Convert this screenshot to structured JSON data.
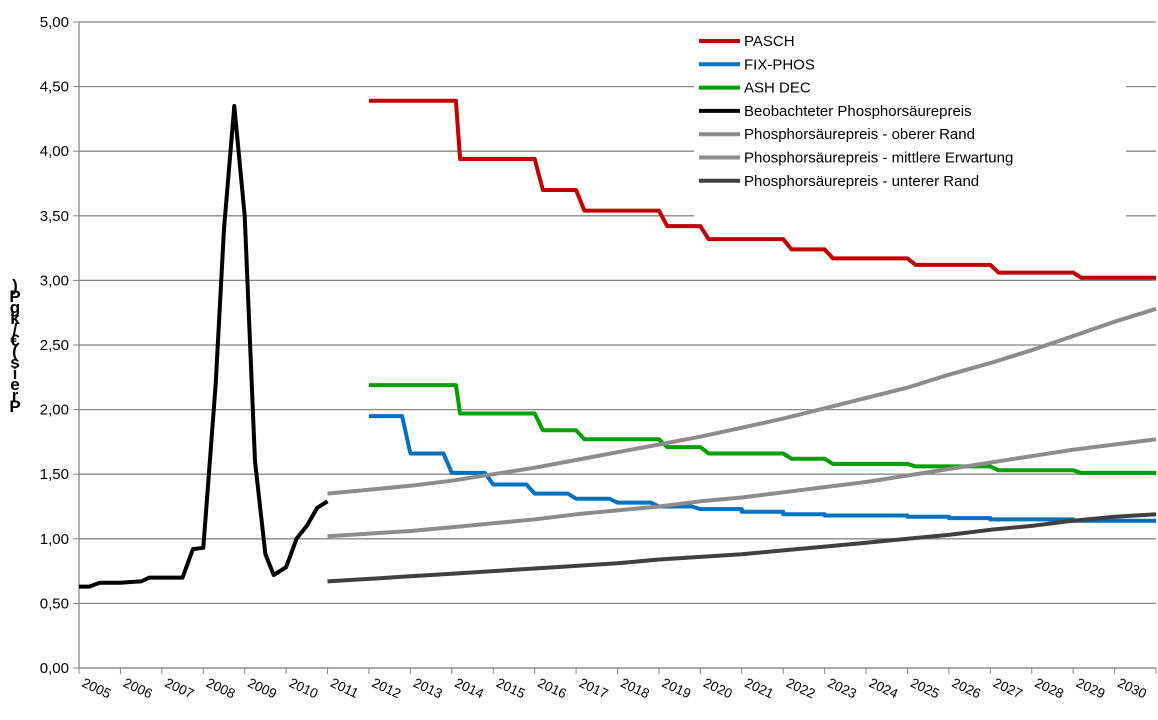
{
  "chart_data": {
    "type": "line",
    "title": "",
    "xlabel": "",
    "ylabel": "Preis (€/kg P)",
    "ylim": [
      0,
      5
    ],
    "yticks": [
      "0,00",
      "0,50",
      "1,00",
      "1,50",
      "2,00",
      "2,50",
      "3,00",
      "3,50",
      "4,00",
      "4,50",
      "5,00"
    ],
    "xlim": [
      2005,
      2031
    ],
    "xticks": [
      "2005",
      "2006",
      "2007",
      "2008",
      "2009",
      "2010",
      "2011",
      "2012",
      "2013",
      "2014",
      "2015",
      "2016",
      "2017",
      "2018",
      "2019",
      "2020",
      "2021",
      "2022",
      "2023",
      "2024",
      "2025",
      "2026",
      "2027",
      "2028",
      "2029",
      "2030"
    ],
    "grid": "horizontal",
    "legend_position": "top-right",
    "series": [
      {
        "name": "PASCH",
        "color": "#c00000",
        "points": [
          [
            2012,
            4.39
          ],
          [
            2014.1,
            4.39
          ],
          [
            2014.2,
            3.94
          ],
          [
            2016,
            3.94
          ],
          [
            2016.2,
            3.7
          ],
          [
            2017,
            3.7
          ],
          [
            2017.2,
            3.54
          ],
          [
            2019,
            3.54
          ],
          [
            2019.2,
            3.42
          ],
          [
            2020,
            3.42
          ],
          [
            2020.2,
            3.32
          ],
          [
            2022,
            3.32
          ],
          [
            2022.2,
            3.24
          ],
          [
            2023,
            3.24
          ],
          [
            2023.2,
            3.17
          ],
          [
            2025,
            3.17
          ],
          [
            2025.2,
            3.12
          ],
          [
            2027,
            3.12
          ],
          [
            2027.2,
            3.06
          ],
          [
            2029,
            3.06
          ],
          [
            2029.2,
            3.02
          ],
          [
            2031,
            3.02
          ]
        ]
      },
      {
        "name": "FIX-PHOS",
        "color": "#0070c0",
        "points": [
          [
            2012,
            1.95
          ],
          [
            2012.8,
            1.95
          ],
          [
            2013,
            1.66
          ],
          [
            2013.8,
            1.66
          ],
          [
            2014,
            1.51
          ],
          [
            2014.8,
            1.51
          ],
          [
            2015,
            1.42
          ],
          [
            2015.8,
            1.42
          ],
          [
            2016,
            1.35
          ],
          [
            2016.8,
            1.35
          ],
          [
            2017,
            1.31
          ],
          [
            2017.8,
            1.31
          ],
          [
            2018,
            1.28
          ],
          [
            2018.8,
            1.28
          ],
          [
            2019,
            1.25
          ],
          [
            2019.8,
            1.25
          ],
          [
            2020,
            1.23
          ],
          [
            2021,
            1.23
          ],
          [
            2021,
            1.21
          ],
          [
            2022,
            1.21
          ],
          [
            2022,
            1.19
          ],
          [
            2023,
            1.19
          ],
          [
            2023,
            1.18
          ],
          [
            2025,
            1.18
          ],
          [
            2025,
            1.17
          ],
          [
            2026,
            1.17
          ],
          [
            2026,
            1.16
          ],
          [
            2027,
            1.16
          ],
          [
            2027,
            1.15
          ],
          [
            2029,
            1.15
          ],
          [
            2029,
            1.14
          ],
          [
            2031,
            1.14
          ]
        ]
      },
      {
        "name": "ASH DEC",
        "color": "#00a000",
        "points": [
          [
            2012,
            2.19
          ],
          [
            2014.1,
            2.19
          ],
          [
            2014.2,
            1.97
          ],
          [
            2016,
            1.97
          ],
          [
            2016.2,
            1.84
          ],
          [
            2017,
            1.84
          ],
          [
            2017.2,
            1.77
          ],
          [
            2019,
            1.77
          ],
          [
            2019.2,
            1.71
          ],
          [
            2020,
            1.71
          ],
          [
            2020.2,
            1.66
          ],
          [
            2022,
            1.66
          ],
          [
            2022.2,
            1.62
          ],
          [
            2023,
            1.62
          ],
          [
            2023.2,
            1.58
          ],
          [
            2025,
            1.58
          ],
          [
            2025.2,
            1.56
          ],
          [
            2027,
            1.56
          ],
          [
            2027.2,
            1.53
          ],
          [
            2029,
            1.53
          ],
          [
            2029.2,
            1.51
          ],
          [
            2031,
            1.51
          ]
        ]
      },
      {
        "name": "Beobachteter Phosphorsäurepreis",
        "color": "#000000",
        "points": [
          [
            2005,
            0.63
          ],
          [
            2005.25,
            0.63
          ],
          [
            2005.5,
            0.66
          ],
          [
            2006,
            0.66
          ],
          [
            2006.5,
            0.67
          ],
          [
            2006.7,
            0.7
          ],
          [
            2007.5,
            0.7
          ],
          [
            2007.75,
            0.92
          ],
          [
            2008,
            0.93
          ],
          [
            2008.3,
            2.2
          ],
          [
            2008.5,
            3.4
          ],
          [
            2008.75,
            4.35
          ],
          [
            2009,
            3.5
          ],
          [
            2009.25,
            1.6
          ],
          [
            2009.5,
            0.88
          ],
          [
            2009.7,
            0.72
          ],
          [
            2010,
            0.78
          ],
          [
            2010.25,
            1.0
          ],
          [
            2010.5,
            1.1
          ],
          [
            2010.75,
            1.24
          ],
          [
            2011,
            1.29
          ]
        ]
      },
      {
        "name": "Phosphorsäurepreis - oberer Rand",
        "color": "#8c8c8c",
        "points": [
          [
            2011,
            1.35
          ],
          [
            2012,
            1.38
          ],
          [
            2013,
            1.41
          ],
          [
            2014,
            1.45
          ],
          [
            2015,
            1.5
          ],
          [
            2016,
            1.55
          ],
          [
            2017,
            1.61
          ],
          [
            2018,
            1.67
          ],
          [
            2019,
            1.73
          ],
          [
            2020,
            1.79
          ],
          [
            2021,
            1.86
          ],
          [
            2022,
            1.93
          ],
          [
            2023,
            2.01
          ],
          [
            2024,
            2.09
          ],
          [
            2025,
            2.17
          ],
          [
            2026,
            2.27
          ],
          [
            2027,
            2.36
          ],
          [
            2028,
            2.46
          ],
          [
            2029,
            2.57
          ],
          [
            2030,
            2.68
          ],
          [
            2031,
            2.78
          ]
        ]
      },
      {
        "name": "Phosphorsäurepreis - mittlere Erwartung",
        "color": "#8c8c8c",
        "points": [
          [
            2011,
            1.02
          ],
          [
            2012,
            1.04
          ],
          [
            2013,
            1.06
          ],
          [
            2014,
            1.09
          ],
          [
            2015,
            1.12
          ],
          [
            2016,
            1.15
          ],
          [
            2017,
            1.19
          ],
          [
            2018,
            1.22
          ],
          [
            2019,
            1.25
          ],
          [
            2020,
            1.29
          ],
          [
            2021,
            1.32
          ],
          [
            2022,
            1.36
          ],
          [
            2023,
            1.4
          ],
          [
            2024,
            1.44
          ],
          [
            2025,
            1.49
          ],
          [
            2026,
            1.54
          ],
          [
            2027,
            1.59
          ],
          [
            2028,
            1.64
          ],
          [
            2029,
            1.69
          ],
          [
            2030,
            1.73
          ],
          [
            2031,
            1.77
          ]
        ]
      },
      {
        "name": "Phosphorsäurepreis - unterer Rand",
        "color": "#404040",
        "points": [
          [
            2011,
            0.67
          ],
          [
            2012,
            0.69
          ],
          [
            2013,
            0.71
          ],
          [
            2014,
            0.73
          ],
          [
            2015,
            0.75
          ],
          [
            2016,
            0.77
          ],
          [
            2017,
            0.79
          ],
          [
            2018,
            0.81
          ],
          [
            2019,
            0.84
          ],
          [
            2020,
            0.86
          ],
          [
            2021,
            0.88
          ],
          [
            2022,
            0.91
          ],
          [
            2023,
            0.94
          ],
          [
            2024,
            0.97
          ],
          [
            2025,
            1.0
          ],
          [
            2026,
            1.03
          ],
          [
            2027,
            1.07
          ],
          [
            2028,
            1.1
          ],
          [
            2029,
            1.14
          ],
          [
            2030,
            1.17
          ],
          [
            2031,
            1.19
          ]
        ]
      }
    ]
  }
}
